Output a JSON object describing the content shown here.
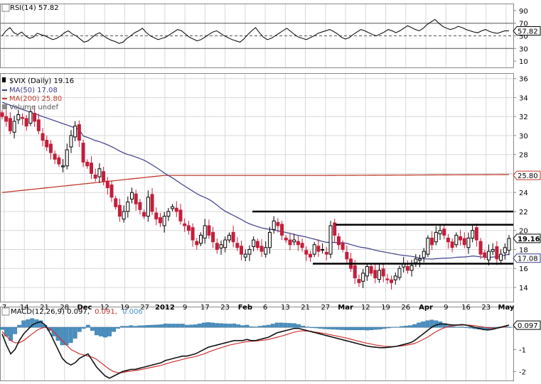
{
  "chart_data": [
    {
      "type": "line",
      "panel": "rsi",
      "legend": "RSI(14) 57.82",
      "y_ticks": [
        "90",
        "70",
        "50",
        "30",
        "10"
      ],
      "y_tick_values": [
        90,
        70,
        50,
        30,
        10
      ],
      "ylim": [
        0,
        100
      ],
      "reference_lines": [
        70,
        50,
        30
      ],
      "current_value": 57.82,
      "current_label": "57.82",
      "series": [
        {
          "values": [
            50,
            58,
            63,
            55,
            52,
            56,
            50,
            46,
            48,
            54,
            52,
            50,
            47,
            44,
            46,
            50,
            55,
            58,
            53,
            50,
            45,
            40,
            42,
            47,
            52,
            55,
            50,
            46,
            43,
            41,
            38,
            40,
            46,
            50,
            55,
            58,
            62,
            55,
            50,
            47,
            44,
            46,
            48,
            52,
            56,
            60,
            58,
            53,
            48,
            45,
            42,
            44,
            48,
            52,
            56,
            58,
            54,
            50,
            47,
            44,
            42,
            40,
            45,
            52,
            58,
            63,
            55,
            48,
            44,
            46,
            50,
            54,
            58,
            62,
            57,
            52,
            48,
            46,
            44,
            47,
            50,
            54,
            56,
            58,
            60,
            57,
            53,
            48,
            45,
            47,
            52,
            56,
            60,
            58,
            55,
            52,
            50,
            53,
            56,
            60,
            58,
            55,
            58,
            62,
            66,
            63,
            60,
            58,
            62,
            68,
            72,
            76,
            70,
            65,
            62,
            60,
            62,
            65,
            63,
            60,
            58,
            56,
            55,
            58,
            60,
            57,
            55,
            54,
            56,
            58,
            57.82
          ]
        }
      ]
    },
    {
      "type": "candlestick",
      "panel": "price",
      "legend_main": "$VIX (Daily) 19.16",
      "legend_ma50": "MA(50) 17.08",
      "legend_ma200": "MA(200) 25.80",
      "legend_volume": "Volume undef",
      "y_ticks": [
        "36",
        "34",
        "32",
        "30",
        "28",
        "26",
        "24",
        "22",
        "20",
        "18",
        "16",
        "14"
      ],
      "y_tick_values": [
        36,
        34,
        32,
        30,
        28,
        26,
        24,
        22,
        20,
        18,
        16,
        14
      ],
      "ylim": [
        12.5,
        36.5
      ],
      "x_tick_labels": [
        "7",
        "14",
        "21",
        "28",
        "Dec",
        "12",
        "19",
        "27",
        "2012",
        "9",
        "17",
        "23",
        "Feb",
        "6",
        "13",
        "21",
        "27",
        "Mar",
        "12",
        "19",
        "26",
        "Apr",
        "9",
        "16",
        "23",
        "May"
      ],
      "close_label": "19.16",
      "close_value": 19.16,
      "ma50_label": "17.08",
      "ma50_value": 17.08,
      "ma200_label": "25.80",
      "ma200_value": 25.8,
      "support_resistance_levels": [
        22.0,
        20.6,
        16.5
      ],
      "close": [
        32.0,
        31.5,
        30.5,
        31.5,
        32.2,
        31.8,
        31.0,
        32.5,
        31.5,
        30.5,
        29.5,
        28.8,
        28.2,
        27.5,
        27.0,
        26.8,
        28.5,
        30.0,
        31.0,
        29.5,
        27.2,
        26.8,
        26.0,
        25.5,
        26.5,
        25.2,
        24.5,
        23.5,
        22.5,
        21.5,
        22.0,
        23.0,
        24.0,
        22.8,
        22.2,
        21.5,
        23.5,
        22.0,
        21.2,
        20.8,
        21.5,
        22.0,
        22.5,
        22.0,
        21.0,
        20.5,
        20.0,
        19.0,
        18.5,
        19.5,
        20.5,
        19.5,
        18.8,
        18.0,
        18.5,
        19.0,
        19.5,
        18.8,
        18.2,
        17.5,
        17.5,
        18.0,
        19.0,
        18.2,
        17.8,
        18.2,
        19.8,
        21.0,
        20.5,
        19.5,
        19.0,
        18.5,
        19.0,
        18.5,
        18.2,
        17.5,
        17.2,
        18.5,
        17.8,
        18.0,
        17.5,
        20.5,
        19.5,
        18.5,
        18.0,
        17.0,
        16.0,
        15.0,
        14.5,
        15.5,
        16.2,
        15.5,
        15.0,
        15.8,
        15.2,
        14.8,
        14.5,
        15.2,
        16.0,
        16.5,
        15.8,
        16.3,
        17.0,
        17.0,
        17.8,
        19.2,
        18.5,
        19.8,
        20.0,
        19.5,
        18.8,
        18.2,
        19.5,
        19.0,
        18.5,
        19.2,
        20.0,
        19.0,
        17.5,
        17.2,
        17.8,
        18.0,
        17.0,
        17.5,
        18.2,
        19.16
      ]
    },
    {
      "type": "line",
      "panel": "macd",
      "legend": "MACD(12,26,9) 0.097, 0.091, 0.006",
      "legend_macd": "MACD(12,26,9) 0.097,",
      "legend_signal": "0.091,",
      "legend_hist": "0.006",
      "y_ticks": [
        "0",
        "-1",
        "-2"
      ],
      "y_tick_values": [
        0,
        -1,
        -2
      ],
      "ylim": [
        -2.4,
        0.9
      ],
      "current_label": "0.097",
      "current_value": 0.097,
      "series": [
        {
          "name": "MACD",
          "values": [
            -0.3,
            -0.8,
            -1.2,
            -1.0,
            -0.6,
            -0.3,
            -0.1,
            0.1,
            0.2,
            0.25,
            0.1,
            -0.2,
            -0.6,
            -1.0,
            -1.4,
            -1.6,
            -1.7,
            -1.6,
            -1.4,
            -1.3,
            -1.2,
            -1.5,
            -1.8,
            -2.0,
            -2.2,
            -2.3,
            -2.2,
            -2.1,
            -2.0,
            -1.95,
            -1.9,
            -1.9,
            -1.85,
            -1.8,
            -1.75,
            -1.7,
            -1.65,
            -1.6,
            -1.5,
            -1.45,
            -1.4,
            -1.35,
            -1.3,
            -1.3,
            -1.25,
            -1.2,
            -1.1,
            -1.0,
            -0.9,
            -0.85,
            -0.8,
            -0.75,
            -0.7,
            -0.65,
            -0.6,
            -0.6,
            -0.6,
            -0.55,
            -0.6,
            -0.6,
            -0.55,
            -0.5,
            -0.45,
            -0.35,
            -0.25,
            -0.2,
            -0.15,
            -0.1,
            -0.05,
            -0.05,
            -0.1,
            -0.15,
            -0.2,
            -0.25,
            -0.3,
            -0.35,
            -0.4,
            -0.45,
            -0.5,
            -0.55,
            -0.6,
            -0.65,
            -0.7,
            -0.75,
            -0.8,
            -0.85,
            -0.88,
            -0.9,
            -0.92,
            -0.92,
            -0.9,
            -0.88,
            -0.85,
            -0.8,
            -0.75,
            -0.7,
            -0.6,
            -0.45,
            -0.3,
            -0.15,
            0.0,
            0.1,
            0.15,
            0.15,
            0.12,
            0.1,
            0.1,
            0.12,
            0.1,
            0.05,
            0.0,
            -0.05,
            -0.1,
            -0.12,
            -0.1,
            -0.05,
            0.0,
            0.05,
            0.097
          ]
        },
        {
          "name": "Signal",
          "values": [
            -0.2,
            -0.4,
            -0.6,
            -0.7,
            -0.7,
            -0.6,
            -0.45,
            -0.3,
            -0.15,
            -0.05,
            0.0,
            -0.05,
            -0.2,
            -0.4,
            -0.6,
            -0.8,
            -1.0,
            -1.1,
            -1.2,
            -1.25,
            -1.3,
            -1.35,
            -1.45,
            -1.6,
            -1.75,
            -1.9,
            -2.0,
            -2.05,
            -2.05,
            -2.0,
            -1.98,
            -1.95,
            -1.92,
            -1.88,
            -1.84,
            -1.8,
            -1.76,
            -1.72,
            -1.66,
            -1.6,
            -1.55,
            -1.5,
            -1.45,
            -1.4,
            -1.36,
            -1.32,
            -1.26,
            -1.2,
            -1.12,
            -1.05,
            -0.98,
            -0.92,
            -0.86,
            -0.8,
            -0.76,
            -0.72,
            -0.68,
            -0.65,
            -0.63,
            -0.62,
            -0.6,
            -0.58,
            -0.55,
            -0.5,
            -0.45,
            -0.4,
            -0.34,
            -0.28,
            -0.22,
            -0.18,
            -0.16,
            -0.17,
            -0.19,
            -0.22,
            -0.25,
            -0.28,
            -0.32,
            -0.36,
            -0.4,
            -0.44,
            -0.48,
            -0.53,
            -0.58,
            -0.63,
            -0.68,
            -0.72,
            -0.76,
            -0.8,
            -0.83,
            -0.86,
            -0.87,
            -0.87,
            -0.86,
            -0.84,
            -0.81,
            -0.78,
            -0.73,
            -0.65,
            -0.55,
            -0.45,
            -0.33,
            -0.2,
            -0.1,
            -0.02,
            0.04,
            0.07,
            0.09,
            0.1,
            0.1,
            0.09,
            0.07,
            0.04,
            0.01,
            -0.02,
            -0.04,
            -0.04,
            -0.02,
            0.02,
            0.091
          ]
        }
      ],
      "histogram": [
        -0.1,
        -0.4,
        -0.6,
        -0.3,
        0.1,
        0.3,
        0.35,
        0.4,
        0.35,
        0.3,
        0.1,
        -0.15,
        -0.4,
        -0.6,
        -0.8,
        -0.8,
        -0.7,
        -0.5,
        -0.2,
        -0.05,
        0.1,
        -0.15,
        -0.35,
        -0.4,
        -0.45,
        -0.4,
        -0.2,
        -0.05,
        0.05,
        0.05,
        0.08,
        0.05,
        0.07,
        0.08,
        0.09,
        0.1,
        0.11,
        0.12,
        0.16,
        0.15,
        0.15,
        0.15,
        0.15,
        0.1,
        0.11,
        0.12,
        0.16,
        0.2,
        0.22,
        0.2,
        0.18,
        0.17,
        0.16,
        0.15,
        0.16,
        0.12,
        0.08,
        0.1,
        0.03,
        0.02,
        0.05,
        0.08,
        0.1,
        0.15,
        0.2,
        0.2,
        0.19,
        0.18,
        0.17,
        0.13,
        0.06,
        0.02,
        -0.01,
        -0.03,
        -0.05,
        -0.07,
        -0.08,
        -0.09,
        -0.1,
        -0.11,
        -0.12,
        -0.12,
        -0.12,
        -0.12,
        -0.12,
        -0.13,
        -0.12,
        -0.1,
        -0.09,
        -0.06,
        -0.03,
        0.01,
        0.01,
        0.04,
        0.06,
        0.08,
        0.13,
        0.2,
        0.25,
        0.3,
        0.33,
        0.3,
        0.25,
        0.17,
        0.08,
        0.03,
        0.01,
        0.02,
        0.0,
        -0.04,
        -0.07,
        -0.09,
        -0.11,
        -0.1,
        -0.06,
        -0.01,
        0.02,
        0.03,
        0.006
      ]
    }
  ],
  "colors": {
    "up": "#000000",
    "down": "#c41e3a",
    "ma50": "#3c3c8c",
    "ma200": "#c0392b",
    "macd": "#111111",
    "signal": "#d03030",
    "histogram": "#4a8fc0",
    "grid": "#d8d8d8",
    "levels": "#000000"
  }
}
